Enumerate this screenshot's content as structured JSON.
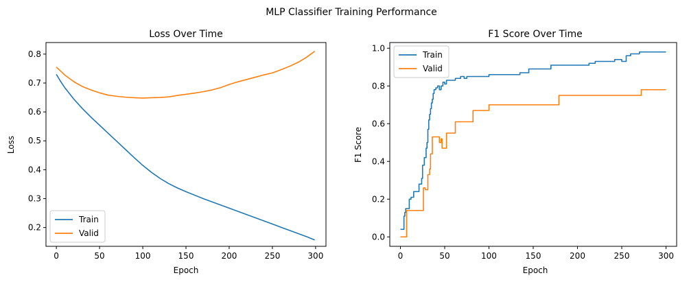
{
  "figure_title": "MLP Classifier Training Performance",
  "colors": {
    "train": "#1f77b4",
    "valid": "#ff7f0e"
  },
  "chart_data": [
    {
      "type": "line",
      "title": "Loss Over Time",
      "xlabel": "Epoch",
      "ylabel": "Loss",
      "xlim": [
        -12,
        312
      ],
      "ylim": [
        0.135,
        0.84
      ],
      "xticks": [
        0,
        50,
        100,
        150,
        200,
        250,
        300
      ],
      "yticks": [
        0.2,
        0.3,
        0.4,
        0.5,
        0.6,
        0.7,
        0.8
      ],
      "ytick_labels": [
        "0.2",
        "0.3",
        "0.4",
        "0.5",
        "0.6",
        "0.7",
        "0.8"
      ],
      "legend_loc": "lower-left",
      "series": [
        {
          "name": "Train",
          "x": [
            0,
            5,
            10,
            20,
            30,
            40,
            50,
            60,
            70,
            80,
            90,
            100,
            110,
            120,
            130,
            140,
            150,
            160,
            170,
            180,
            190,
            200,
            210,
            220,
            230,
            240,
            250,
            260,
            270,
            280,
            290,
            299
          ],
          "y": [
            0.73,
            0.705,
            0.683,
            0.645,
            0.612,
            0.582,
            0.554,
            0.526,
            0.498,
            0.47,
            0.442,
            0.415,
            0.391,
            0.37,
            0.352,
            0.337,
            0.324,
            0.312,
            0.3,
            0.289,
            0.278,
            0.267,
            0.256,
            0.245,
            0.234,
            0.223,
            0.212,
            0.201,
            0.19,
            0.179,
            0.168,
            0.157
          ]
        },
        {
          "name": "Valid",
          "x": [
            0,
            10,
            20,
            30,
            40,
            50,
            60,
            70,
            80,
            90,
            100,
            110,
            120,
            130,
            140,
            150,
            160,
            170,
            180,
            190,
            200,
            210,
            220,
            230,
            240,
            250,
            260,
            270,
            280,
            290,
            299
          ],
          "y": [
            0.755,
            0.727,
            0.705,
            0.688,
            0.676,
            0.666,
            0.658,
            0.654,
            0.651,
            0.649,
            0.648,
            0.649,
            0.65,
            0.652,
            0.657,
            0.661,
            0.665,
            0.67,
            0.676,
            0.684,
            0.695,
            0.704,
            0.712,
            0.72,
            0.728,
            0.735,
            0.746,
            0.758,
            0.772,
            0.79,
            0.81
          ]
        }
      ]
    },
    {
      "type": "line",
      "title": "F1 Score Over Time",
      "xlabel": "Epoch",
      "ylabel": "F1 Score",
      "xlim": [
        -12,
        312
      ],
      "ylim": [
        -0.05,
        1.03
      ],
      "xticks": [
        0,
        50,
        100,
        150,
        200,
        250,
        300
      ],
      "yticks": [
        0.0,
        0.2,
        0.4,
        0.6,
        0.8,
        1.0
      ],
      "ytick_labels": [
        "0.0",
        "0.2",
        "0.4",
        "0.6",
        "0.8",
        "1.0"
      ],
      "legend_loc": "upper-left",
      "series": [
        {
          "name": "Train",
          "x": [
            0,
            4,
            4,
            5,
            5,
            6,
            6,
            10,
            10,
            12,
            12,
            15,
            15,
            21,
            21,
            24,
            24,
            25,
            25,
            27,
            27,
            29,
            29,
            30,
            30,
            31,
            31,
            32,
            32,
            33,
            33,
            34,
            34,
            35,
            35,
            36,
            36,
            37,
            37,
            38,
            38,
            40,
            40,
            42,
            42,
            44,
            44,
            46,
            46,
            48,
            48,
            50,
            50,
            52,
            52,
            56,
            56,
            62,
            62,
            68,
            68,
            72,
            72,
            75,
            75,
            100,
            100,
            135,
            135,
            145,
            145,
            170,
            170,
            205,
            205,
            213,
            213,
            220,
            220,
            242,
            242,
            250,
            250,
            255,
            255,
            260,
            260,
            262,
            262,
            270,
            270,
            300
          ],
          "y": [
            0.04,
            0.04,
            0.11,
            0.11,
            0.13,
            0.13,
            0.15,
            0.15,
            0.2,
            0.2,
            0.21,
            0.21,
            0.24,
            0.24,
            0.28,
            0.28,
            0.31,
            0.31,
            0.38,
            0.38,
            0.42,
            0.42,
            0.47,
            0.47,
            0.5,
            0.5,
            0.57,
            0.57,
            0.62,
            0.62,
            0.65,
            0.65,
            0.68,
            0.68,
            0.71,
            0.71,
            0.73,
            0.73,
            0.76,
            0.76,
            0.78,
            0.78,
            0.79,
            0.79,
            0.8,
            0.8,
            0.78,
            0.78,
            0.8,
            0.8,
            0.82,
            0.82,
            0.81,
            0.81,
            0.83,
            0.83,
            0.83,
            0.83,
            0.84,
            0.84,
            0.85,
            0.85,
            0.84,
            0.84,
            0.85,
            0.85,
            0.86,
            0.86,
            0.87,
            0.87,
            0.89,
            0.89,
            0.91,
            0.91,
            0.91,
            0.91,
            0.92,
            0.92,
            0.93,
            0.93,
            0.94,
            0.94,
            0.93,
            0.93,
            0.96,
            0.96,
            0.97,
            0.97,
            0.97,
            0.97,
            0.98,
            0.98
          ]
        },
        {
          "name": "Valid",
          "x": [
            0,
            7,
            7,
            26,
            26,
            28,
            28,
            31,
            31,
            33,
            33,
            34,
            34,
            36,
            36,
            39,
            39,
            44,
            44,
            46,
            46,
            47,
            47,
            52,
            52,
            57,
            57,
            62,
            62,
            82,
            82,
            100,
            100,
            179,
            179,
            272,
            272,
            300
          ],
          "y": [
            0.0,
            0.0,
            0.14,
            0.14,
            0.26,
            0.26,
            0.25,
            0.25,
            0.33,
            0.33,
            0.36,
            0.36,
            0.44,
            0.44,
            0.53,
            0.53,
            0.53,
            0.53,
            0.5,
            0.5,
            0.52,
            0.52,
            0.47,
            0.47,
            0.55,
            0.55,
            0.55,
            0.55,
            0.61,
            0.61,
            0.67,
            0.67,
            0.7,
            0.7,
            0.75,
            0.75,
            0.78,
            0.78
          ]
        }
      ]
    }
  ]
}
